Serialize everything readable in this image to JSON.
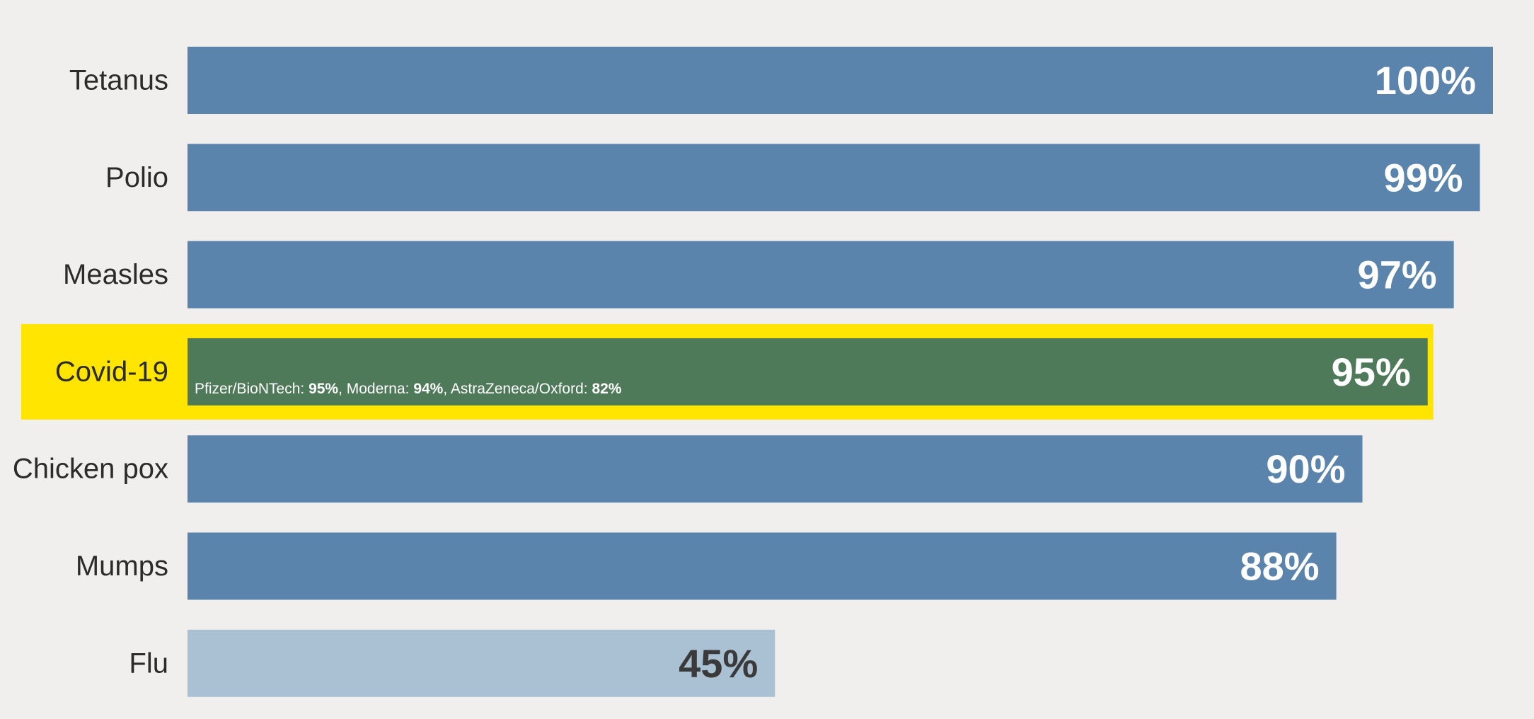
{
  "chart_data": {
    "type": "bar",
    "orientation": "horizontal",
    "categories": [
      "Tetanus",
      "Polio",
      "Measles",
      "Covid-19",
      "Chicken pox",
      "Mumps",
      "Flu"
    ],
    "values": [
      100,
      99,
      97,
      95,
      90,
      88,
      45
    ],
    "value_labels": [
      "100%",
      "99%",
      "97%",
      "95%",
      "90%",
      "88%",
      "45%"
    ],
    "xlim": [
      0,
      100
    ],
    "highlight_category": "Covid-19",
    "grid": false,
    "legend": "none",
    "annotation": {
      "category": "Covid-19",
      "parts": [
        {
          "text": "Pfizer/BioNTech: ",
          "bold": false
        },
        {
          "text": "95%",
          "bold": true
        },
        {
          "text": ", Moderna: ",
          "bold": false
        },
        {
          "text": "94%",
          "bold": true
        },
        {
          "text": ", AstraZeneca/Oxford: ",
          "bold": false
        },
        {
          "text": "82%",
          "bold": true
        }
      ]
    },
    "colors": {
      "background": "#f0efed",
      "bar": "#5b84ad",
      "bar_highlight": "#4f7a5a",
      "bar_low": "#aac0d3",
      "highlight_box": "#ffe500",
      "value_text": "#ffffff",
      "value_text_low": "#3a3a3a",
      "category_text": "#2b2b2b"
    }
  }
}
